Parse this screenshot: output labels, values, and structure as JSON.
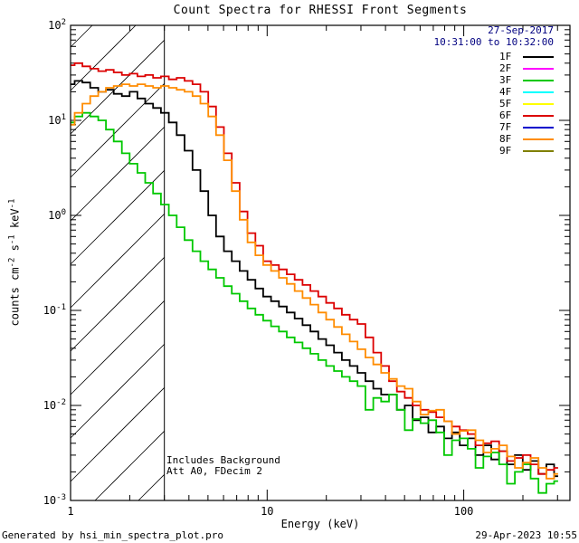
{
  "header": {
    "date_line": "27-Sep-2017",
    "time_line": "10:31:00 to 10:32:00",
    "color": "#000080"
  },
  "legend": {
    "items": [
      {
        "label": "1F",
        "color": "#000000"
      },
      {
        "label": "2F",
        "color": "#FF00FF"
      },
      {
        "label": "3F",
        "color": "#00C800"
      },
      {
        "label": "4F",
        "color": "#00FFFF"
      },
      {
        "label": "5F",
        "color": "#FFFF00"
      },
      {
        "label": "6F",
        "color": "#DC0000"
      },
      {
        "label": "7F",
        "color": "#0000CC"
      },
      {
        "label": "8F",
        "color": "#FF8C00"
      },
      {
        "label": "9F",
        "color": "#808000"
      }
    ]
  },
  "annotations": {
    "line1": "Includes Background",
    "line2": "Att A0, FDecim 2"
  },
  "footer": {
    "left": "Generated by hsi_min_spectra_plot.pro",
    "right": "29-Apr-2023 10:55"
  },
  "chart_data": {
    "type": "line",
    "mode": "histogram-step",
    "title": "Count Spectra for RHESSI Front Segments",
    "xlabel": "Energy (keV)",
    "ylabel": "counts cm^-2 s^-1 keV^-1",
    "xscale": "log",
    "yscale": "log",
    "xlim": [
      1,
      347
    ],
    "ylim": [
      0.001,
      100
    ],
    "grid": false,
    "legend_position": "top-right",
    "x_ticks": [
      {
        "value": 1,
        "label": "1"
      },
      {
        "value": 10,
        "label": "10"
      },
      {
        "value": 100,
        "label": "100"
      }
    ],
    "y_ticks": [
      {
        "value": 100,
        "label": "10^2"
      },
      {
        "value": 10,
        "label": "10^1"
      },
      {
        "value": 1,
        "label": "10^0"
      },
      {
        "value": 0.1,
        "label": "10^-1"
      },
      {
        "value": 0.01,
        "label": "10^-2"
      },
      {
        "value": 0.001,
        "label": "10^-3"
      }
    ],
    "hatch_region": {
      "x_min": 1,
      "x_max": 3
    },
    "x": [
      1.0,
      1.1,
      1.2,
      1.32,
      1.45,
      1.58,
      1.74,
      1.91,
      2.09,
      2.29,
      2.51,
      2.75,
      3.02,
      3.31,
      3.63,
      3.98,
      4.37,
      4.79,
      5.25,
      5.75,
      6.31,
      6.92,
      7.59,
      8.32,
      9.12,
      10.0,
      10.96,
      12.02,
      13.18,
      14.45,
      15.85,
      17.38,
      19.05,
      20.89,
      22.91,
      25.12,
      27.54,
      30.2,
      33.11,
      36.31,
      39.81,
      43.65,
      47.86,
      52.48,
      57.54,
      63.1,
      69.18,
      75.86,
      83.18,
      91.2,
      100.0,
      109.6,
      120.2,
      131.8,
      144.5,
      158.5,
      173.8,
      190.5,
      208.9,
      229.1,
      251.2,
      275.4,
      302.0
    ],
    "series": [
      {
        "name": "1F",
        "color": "#000000",
        "values": [
          24,
          26,
          25,
          22,
          20,
          21,
          19,
          18,
          20,
          17,
          15,
          13.5,
          12,
          9.5,
          7.0,
          4.8,
          3.0,
          1.8,
          1.0,
          0.6,
          0.42,
          0.33,
          0.26,
          0.21,
          0.17,
          0.14,
          0.125,
          0.11,
          0.095,
          0.082,
          0.07,
          0.06,
          0.05,
          0.043,
          0.036,
          0.03,
          0.026,
          0.022,
          0.018,
          0.015,
          0.013,
          0.013,
          0.009,
          0.01,
          0.007,
          0.0075,
          0.0052,
          0.006,
          0.0045,
          0.0052,
          0.0038,
          0.0045,
          0.003,
          0.0038,
          0.0027,
          0.0033,
          0.0024,
          0.003,
          0.0021,
          0.0026,
          0.0019,
          0.0024,
          0.0018
        ]
      },
      {
        "name": "3F",
        "color": "#00C800",
        "values": [
          9.5,
          11,
          12,
          11,
          10,
          8.0,
          6.0,
          4.5,
          3.5,
          2.8,
          2.2,
          1.7,
          1.3,
          1.0,
          0.75,
          0.55,
          0.42,
          0.33,
          0.27,
          0.22,
          0.18,
          0.15,
          0.125,
          0.105,
          0.09,
          0.078,
          0.068,
          0.06,
          0.052,
          0.046,
          0.04,
          0.035,
          0.03,
          0.026,
          0.023,
          0.02,
          0.018,
          0.016,
          0.009,
          0.012,
          0.011,
          0.013,
          0.009,
          0.0055,
          0.0072,
          0.0065,
          0.007,
          0.0052,
          0.003,
          0.0043,
          0.0045,
          0.0035,
          0.0022,
          0.0029,
          0.0032,
          0.0024,
          0.0015,
          0.002,
          0.0024,
          0.0017,
          0.0012,
          0.0015,
          0.0016
        ]
      },
      {
        "name": "6F",
        "color": "#DC0000",
        "values": [
          38,
          40,
          37,
          35,
          33,
          34,
          32,
          30,
          31,
          29,
          30,
          28,
          29,
          27,
          28,
          26,
          24,
          20,
          14,
          8.5,
          4.5,
          2.2,
          1.1,
          0.65,
          0.48,
          0.33,
          0.3,
          0.27,
          0.24,
          0.21,
          0.185,
          0.16,
          0.14,
          0.12,
          0.105,
          0.09,
          0.08,
          0.072,
          0.052,
          0.036,
          0.026,
          0.018,
          0.014,
          0.012,
          0.01,
          0.009,
          0.0085,
          0.0075,
          0.0068,
          0.006,
          0.0055,
          0.005,
          0.0038,
          0.004,
          0.0042,
          0.0033,
          0.0026,
          0.0028,
          0.003,
          0.0024,
          0.0019,
          0.0021,
          0.0022
        ]
      },
      {
        "name": "8F",
        "color": "#FF8C00",
        "values": [
          9,
          12,
          15,
          18,
          20,
          22,
          23,
          24,
          23,
          24,
          23,
          22,
          23,
          22,
          21,
          20,
          18,
          15,
          11,
          7.0,
          3.8,
          1.8,
          0.9,
          0.52,
          0.38,
          0.3,
          0.26,
          0.22,
          0.19,
          0.16,
          0.135,
          0.115,
          0.095,
          0.08,
          0.067,
          0.056,
          0.047,
          0.039,
          0.032,
          0.027,
          0.022,
          0.019,
          0.016,
          0.015,
          0.011,
          0.008,
          0.0088,
          0.009,
          0.0068,
          0.005,
          0.0054,
          0.0055,
          0.0043,
          0.0032,
          0.0035,
          0.0038,
          0.0029,
          0.0022,
          0.0025,
          0.0028,
          0.0022,
          0.0017,
          0.0019
        ]
      }
    ]
  }
}
